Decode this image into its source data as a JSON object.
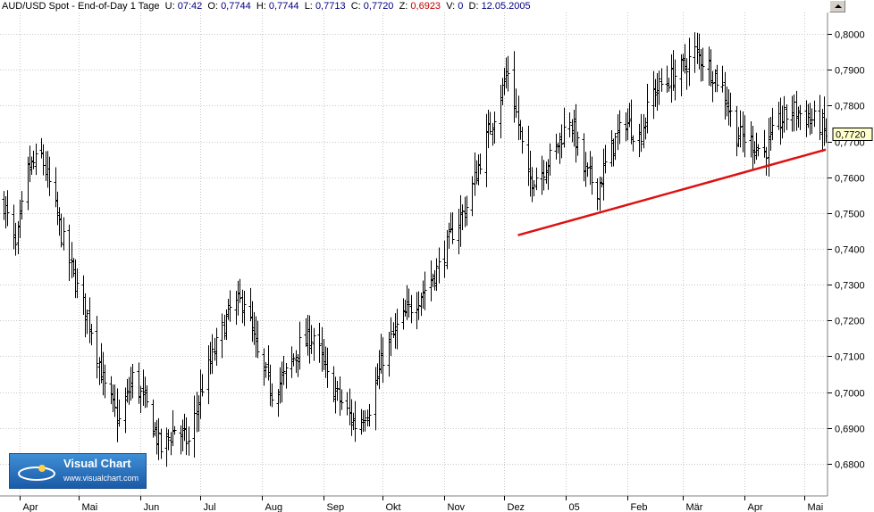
{
  "header": {
    "instrument": "AUD/USD Spot",
    "period": "End-of-Day 1 Tage",
    "u_label": "U:",
    "u_value": "07:42",
    "o_label": "O:",
    "o_value": "0,7744",
    "h_label": "H:",
    "h_value": "0,7744",
    "l_label": "L:",
    "l_value": "0,7713",
    "c_label": "C:",
    "c_value": "0,7720",
    "z_label": "Z:",
    "z_value": "0,6923",
    "v_label": "V:",
    "v_value": "0",
    "d_label": "D:",
    "d_value": "12.05.2005"
  },
  "logo": {
    "title": "Visual Chart",
    "url": "www.visualchart.com"
  },
  "colors": {
    "trendline": "#dd1111",
    "bars": "#000000",
    "grid": "#c8c8c8",
    "price_tag": "#ffffcc",
    "z_value": "#c00000"
  },
  "chart_data": {
    "type": "ohlc-bar",
    "title": "",
    "xlabel": "",
    "ylabel": "",
    "grid": true,
    "ylim": [
      0.672,
      0.805
    ],
    "y_ticks": [
      "0,8000",
      "0,7900",
      "0,7800",
      "0,7700",
      "0,7600",
      "0,7500",
      "0,7400",
      "0,7300",
      "0,7200",
      "0,7100",
      "0,7000",
      "0,6900",
      "0,6800"
    ],
    "y_tick_values": [
      0.8,
      0.79,
      0.78,
      0.77,
      0.76,
      0.75,
      0.74,
      0.73,
      0.72,
      0.71,
      0.7,
      0.69,
      0.68
    ],
    "x_months": [
      "Apr",
      "Mai",
      "Jun",
      "Jul",
      "Aug",
      "Sep",
      "Okt",
      "Nov",
      "Dez",
      "05",
      "Feb",
      "Mär",
      "Apr",
      "Mai"
    ],
    "x_month_starts": [
      "2004-04-01",
      "2004-05-01",
      "2004-06-01",
      "2004-07-01",
      "2004-08-01",
      "2004-09-01",
      "2004-10-01",
      "2004-11-01",
      "2004-12-01",
      "2005-01-01",
      "2005-02-01",
      "2005-03-01",
      "2005-04-01",
      "2005-05-01"
    ],
    "x_range": [
      "2004-03-24",
      "2005-05-12"
    ],
    "close_path": [
      [
        "2004-03-24",
        0.753
      ],
      [
        "2004-03-30",
        0.74
      ],
      [
        "2004-04-05",
        0.762
      ],
      [
        "2004-04-12",
        0.766
      ],
      [
        "2004-04-16",
        0.758
      ],
      [
        "2004-04-23",
        0.742
      ],
      [
        "2004-04-30",
        0.729
      ],
      [
        "2004-05-07",
        0.718
      ],
      [
        "2004-05-14",
        0.701
      ],
      [
        "2004-05-21",
        0.692
      ],
      [
        "2004-05-28",
        0.704
      ],
      [
        "2004-06-04",
        0.696
      ],
      [
        "2004-06-11",
        0.684
      ],
      [
        "2004-06-18",
        0.69
      ],
      [
        "2004-06-25",
        0.686
      ],
      [
        "2004-07-02",
        0.702
      ],
      [
        "2004-07-09",
        0.713
      ],
      [
        "2004-07-16",
        0.723
      ],
      [
        "2004-07-23",
        0.726
      ],
      [
        "2004-07-30",
        0.71
      ],
      [
        "2004-08-06",
        0.7
      ],
      [
        "2004-08-13",
        0.705
      ],
      [
        "2004-08-20",
        0.713
      ],
      [
        "2004-08-27",
        0.716
      ],
      [
        "2004-09-03",
        0.704
      ],
      [
        "2004-09-10",
        0.697
      ],
      [
        "2004-09-17",
        0.691
      ],
      [
        "2004-09-24",
        0.696
      ],
      [
        "2004-10-01",
        0.71
      ],
      [
        "2004-10-08",
        0.718
      ],
      [
        "2004-10-15",
        0.724
      ],
      [
        "2004-10-22",
        0.729
      ],
      [
        "2004-10-29",
        0.735
      ],
      [
        "2004-11-05",
        0.745
      ],
      [
        "2004-11-12",
        0.752
      ],
      [
        "2004-11-19",
        0.765
      ],
      [
        "2004-11-26",
        0.778
      ],
      [
        "2004-12-03",
        0.79
      ],
      [
        "2004-12-07",
        0.778
      ],
      [
        "2004-12-13",
        0.759
      ],
      [
        "2004-12-20",
        0.762
      ],
      [
        "2004-12-27",
        0.768
      ],
      [
        "2005-01-03",
        0.777
      ],
      [
        "2005-01-10",
        0.762
      ],
      [
        "2005-01-17",
        0.757
      ],
      [
        "2005-01-24",
        0.768
      ],
      [
        "2005-01-31",
        0.776
      ],
      [
        "2005-02-07",
        0.771
      ],
      [
        "2005-02-14",
        0.784
      ],
      [
        "2005-02-21",
        0.787
      ],
      [
        "2005-02-28",
        0.79
      ],
      [
        "2005-03-07",
        0.795
      ],
      [
        "2005-03-14",
        0.791
      ],
      [
        "2005-03-21",
        0.785
      ],
      [
        "2005-03-28",
        0.772
      ],
      [
        "2005-04-04",
        0.77
      ],
      [
        "2005-04-11",
        0.767
      ],
      [
        "2005-04-18",
        0.775
      ],
      [
        "2005-04-25",
        0.779
      ],
      [
        "2005-05-02",
        0.777
      ],
      [
        "2005-05-09",
        0.775
      ],
      [
        "2005-05-12",
        0.772
      ]
    ],
    "last_value_tag": "0,7720",
    "last_value": 0.772,
    "trendline": {
      "from": [
        "2004-12-08",
        0.7438
      ],
      "to": [
        "2005-05-12",
        0.7677
      ]
    }
  }
}
